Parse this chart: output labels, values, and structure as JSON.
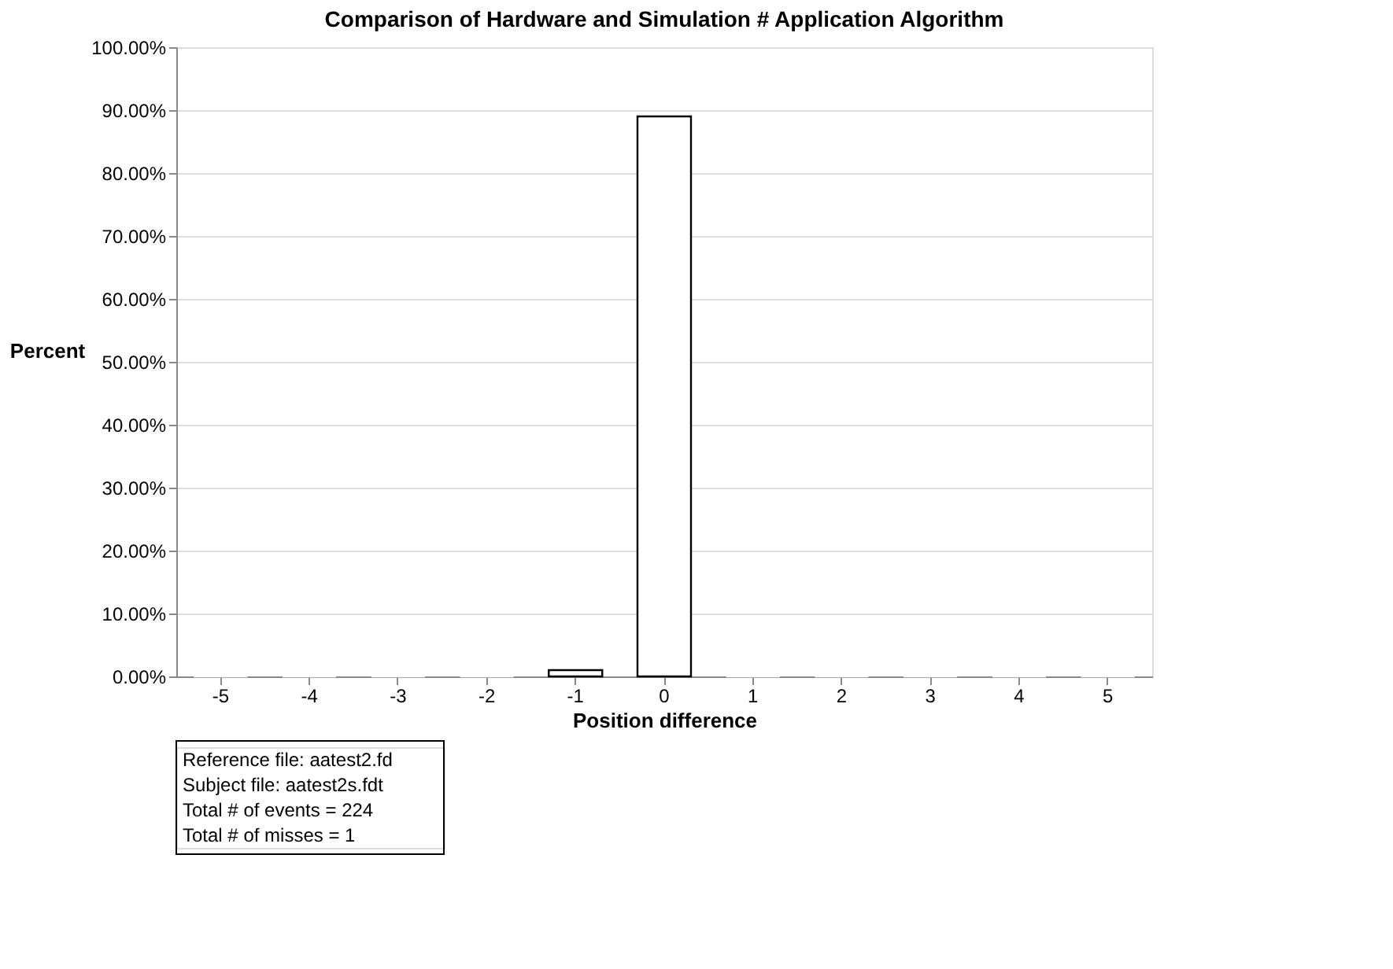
{
  "chart_data": {
    "type": "bar",
    "title": "Comparison of Hardware and Simulation # Application Algorithm",
    "xlabel": "Position difference",
    "ylabel": "Percent",
    "categories": [
      "-5",
      "-4",
      "-3",
      "-2",
      "-1",
      "0",
      "1",
      "2",
      "3",
      "4",
      "5"
    ],
    "values": [
      0,
      0,
      0,
      0,
      1,
      89,
      0,
      0,
      0,
      0,
      0
    ],
    "color": "#ffffff",
    "ylim": [
      0,
      100
    ],
    "yticks": [
      {
        "value": 0,
        "label": "0.00%"
      },
      {
        "value": 10,
        "label": "10.00%"
      },
      {
        "value": 20,
        "label": "20.00%"
      },
      {
        "value": 30,
        "label": "30.00%"
      },
      {
        "value": 40,
        "label": "40.00%"
      },
      {
        "value": 50,
        "label": "50.00%"
      },
      {
        "value": 60,
        "label": "60.00%"
      },
      {
        "value": 70,
        "label": "70.00%"
      },
      {
        "value": 80,
        "label": "80.00%"
      },
      {
        "value": 90,
        "label": "90.00%"
      },
      {
        "value": 100,
        "label": "100.00%"
      }
    ],
    "grid": "y",
    "annotations": [
      "Reference file: aatest2.fd",
      "Subject file: aatest2s.fdt",
      "Total # of events = 224",
      "Total # of misses = 1"
    ]
  }
}
